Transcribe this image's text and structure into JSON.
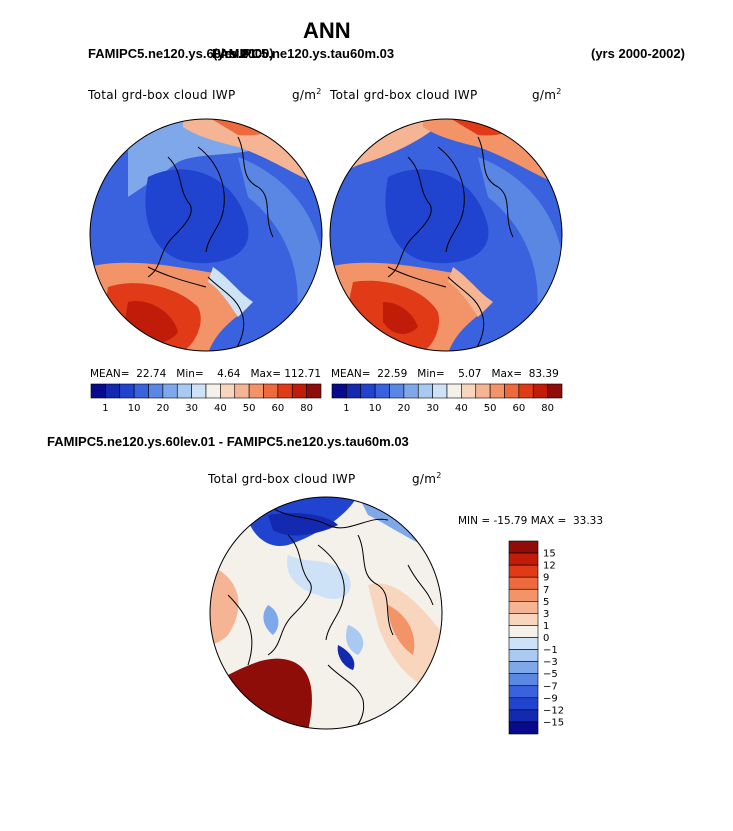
{
  "figure": {
    "title": "ANN",
    "period": "(yrs 2000-2002)",
    "label_left": "FAMIPC5.ne120.ys.60lev.01",
    "label_overlap": "FAMIPC5.ne120.ys.tau60m.03",
    "overlap_yrs": "(yrs 2000)",
    "diff_label": "FAMIPC5.ne120.ys.60lev.01 - FAMIPC5.ne120.ys.tau60m.03"
  },
  "colors": {
    "pos": [
      "#f4f0ea",
      "#f8d5bd",
      "#f5b493",
      "#f29468",
      "#ed6a3e",
      "#e03a17",
      "#c11c0a",
      "#8e0d08"
    ],
    "neg": [
      "#cde2f7",
      "#a9c9f1",
      "#7fa8ea",
      "#5a86e4",
      "#3a62de",
      "#2144d0",
      "#1329b0",
      "#070a8c"
    ],
    "abs_scale": [
      "#070a8c",
      "#1329b0",
      "#2144d0",
      "#3a62de",
      "#5a86e4",
      "#7fa8ea",
      "#a9c9f1",
      "#cde2f7",
      "#f4f0ea",
      "#f8d5bd",
      "#f5b493",
      "#f29468",
      "#ed6a3e",
      "#e03a17",
      "#c11c0a",
      "#8e0d08"
    ]
  },
  "chart_data": [
    {
      "type": "heatmap",
      "projection": "north polar stereographic",
      "title": "Total grd-box cloud IWP",
      "units": "g/m",
      "units_power": "2",
      "stats": {
        "mean_label": "MEAN=",
        "mean": "22.74",
        "min_label": "Min=",
        "min": "4.64",
        "max_label": "Max=",
        "max": "112.71"
      },
      "colorbar_ticks": [
        "1",
        "10",
        "20",
        "30",
        "40",
        "50",
        "60",
        "80"
      ]
    },
    {
      "type": "heatmap",
      "projection": "north polar stereographic",
      "title": "Total grd-box cloud IWP",
      "units": "g/m",
      "units_power": "2",
      "stats": {
        "mean_label": "MEAN=",
        "mean": "22.59",
        "min_label": "Min=",
        "min": "5.07",
        "max_label": "Max=",
        "max": "83.39"
      },
      "colorbar_ticks": [
        "1",
        "10",
        "20",
        "30",
        "40",
        "50",
        "60",
        "80"
      ]
    },
    {
      "type": "heatmap",
      "projection": "north polar stereographic",
      "title": "Total grd-box cloud IWP",
      "units": "g/m",
      "units_power": "2",
      "stats": {
        "min_label": "MIN =",
        "min": "-15.79",
        "max_label": "MAX =",
        "max": "33.33"
      },
      "colorbar_levels": [
        "15",
        "12",
        "9",
        "7",
        "5",
        "3",
        "1",
        "0",
        "−1",
        "−3",
        "−5",
        "−7",
        "−9",
        "−12",
        "−15"
      ]
    }
  ]
}
